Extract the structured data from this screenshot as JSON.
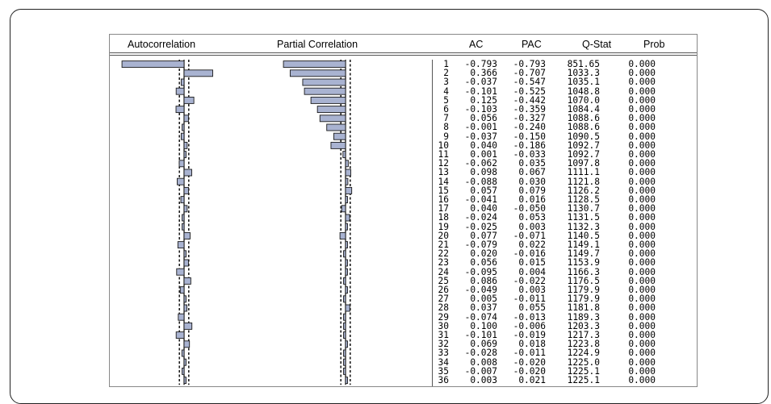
{
  "window": {
    "title": ""
  },
  "header": {
    "autocorrelation": "Autocorrelation",
    "partial_correlation": "Partial Correlation",
    "ac": "AC",
    "pac": "PAC",
    "qstat": "Q-Stat",
    "prob": "Prob"
  },
  "colors": {
    "bar_fill": "#A9B3D1",
    "bar_stroke": "#1a1a1a",
    "line": "#000000"
  },
  "confidence_bound": 0.06,
  "rows": [
    {
      "lag": "1",
      "ac": "-0.793",
      "pac": "-0.793",
      "q": "851.65",
      "p": "0.000"
    },
    {
      "lag": "2",
      "ac": "0.366",
      "pac": "-0.707",
      "q": "1033.3",
      "p": "0.000"
    },
    {
      "lag": "3",
      "ac": "-0.037",
      "pac": "-0.547",
      "q": "1035.1",
      "p": "0.000"
    },
    {
      "lag": "4",
      "ac": "-0.101",
      "pac": "-0.525",
      "q": "1048.8",
      "p": "0.000"
    },
    {
      "lag": "5",
      "ac": "0.125",
      "pac": "-0.442",
      "q": "1070.0",
      "p": "0.000"
    },
    {
      "lag": "6",
      "ac": "-0.103",
      "pac": "-0.359",
      "q": "1084.4",
      "p": "0.000"
    },
    {
      "lag": "7",
      "ac": "0.056",
      "pac": "-0.327",
      "q": "1088.6",
      "p": "0.000"
    },
    {
      "lag": "8",
      "ac": "-0.001",
      "pac": "-0.240",
      "q": "1088.6",
      "p": "0.000"
    },
    {
      "lag": "9",
      "ac": "-0.037",
      "pac": "-0.150",
      "q": "1090.5",
      "p": "0.000"
    },
    {
      "lag": "10",
      "ac": "0.040",
      "pac": "-0.186",
      "q": "1092.7",
      "p": "0.000"
    },
    {
      "lag": "11",
      "ac": "0.001",
      "pac": "-0.033",
      "q": "1092.7",
      "p": "0.000"
    },
    {
      "lag": "12",
      "ac": "-0.062",
      "pac": "0.035",
      "q": "1097.8",
      "p": "0.000"
    },
    {
      "lag": "13",
      "ac": "0.098",
      "pac": "0.067",
      "q": "1111.1",
      "p": "0.000"
    },
    {
      "lag": "14",
      "ac": "-0.088",
      "pac": "0.030",
      "q": "1121.8",
      "p": "0.000"
    },
    {
      "lag": "15",
      "ac": "0.057",
      "pac": "0.079",
      "q": "1126.2",
      "p": "0.000"
    },
    {
      "lag": "16",
      "ac": "-0.041",
      "pac": "0.016",
      "q": "1128.5",
      "p": "0.000"
    },
    {
      "lag": "17",
      "ac": "0.040",
      "pac": "-0.050",
      "q": "1130.7",
      "p": "0.000"
    },
    {
      "lag": "18",
      "ac": "-0.024",
      "pac": "0.053",
      "q": "1131.5",
      "p": "0.000"
    },
    {
      "lag": "19",
      "ac": "-0.025",
      "pac": "0.003",
      "q": "1132.3",
      "p": "0.000"
    },
    {
      "lag": "20",
      "ac": "0.077",
      "pac": "-0.071",
      "q": "1140.5",
      "p": "0.000"
    },
    {
      "lag": "21",
      "ac": "-0.079",
      "pac": "0.022",
      "q": "1149.1",
      "p": "0.000"
    },
    {
      "lag": "22",
      "ac": "0.020",
      "pac": "-0.016",
      "q": "1149.7",
      "p": "0.000"
    },
    {
      "lag": "23",
      "ac": "0.056",
      "pac": "0.015",
      "q": "1153.9",
      "p": "0.000"
    },
    {
      "lag": "24",
      "ac": "-0.095",
      "pac": "0.004",
      "q": "1166.3",
      "p": "0.000"
    },
    {
      "lag": "25",
      "ac": "0.086",
      "pac": "-0.022",
      "q": "1176.5",
      "p": "0.000"
    },
    {
      "lag": "26",
      "ac": "-0.049",
      "pac": "0.003",
      "q": "1179.9",
      "p": "0.000"
    },
    {
      "lag": "27",
      "ac": "0.005",
      "pac": "-0.011",
      "q": "1179.9",
      "p": "0.000"
    },
    {
      "lag": "28",
      "ac": "0.037",
      "pac": "0.055",
      "q": "1181.8",
      "p": "0.000"
    },
    {
      "lag": "29",
      "ac": "-0.074",
      "pac": "-0.013",
      "q": "1189.3",
      "p": "0.000"
    },
    {
      "lag": "30",
      "ac": "0.100",
      "pac": "-0.006",
      "q": "1203.3",
      "p": "0.000"
    },
    {
      "lag": "31",
      "ac": "-0.101",
      "pac": "-0.019",
      "q": "1217.3",
      "p": "0.000"
    },
    {
      "lag": "32",
      "ac": "0.069",
      "pac": "0.018",
      "q": "1223.8",
      "p": "0.000"
    },
    {
      "lag": "33",
      "ac": "-0.028",
      "pac": "-0.011",
      "q": "1224.9",
      "p": "0.000"
    },
    {
      "lag": "34",
      "ac": "0.008",
      "pac": "-0.020",
      "q": "1225.0",
      "p": "0.000"
    },
    {
      "lag": "35",
      "ac": "-0.007",
      "pac": "-0.020",
      "q": "1225.1",
      "p": "0.000"
    },
    {
      "lag": "36",
      "ac": "0.003",
      "pac": "0.021",
      "q": "1225.1",
      "p": "0.000"
    }
  ]
}
